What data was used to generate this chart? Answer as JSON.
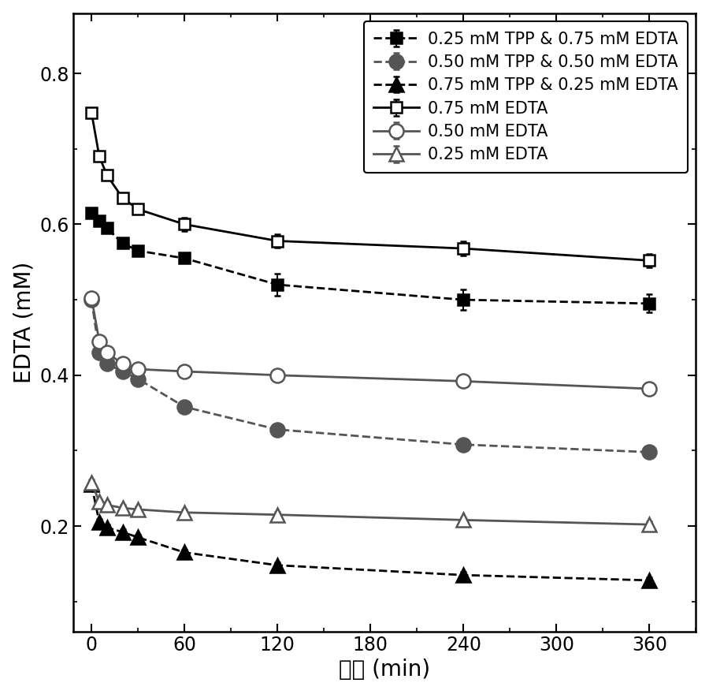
{
  "title": "",
  "xlabel": "时间 (min)",
  "ylabel": "EDTA (mM)",
  "xlim": [
    -12,
    390
  ],
  "ylim": [
    0.06,
    0.88
  ],
  "xticks": [
    0,
    60,
    120,
    180,
    240,
    300,
    360
  ],
  "yticks": [
    0.2,
    0.4,
    0.6,
    0.8
  ],
  "series": [
    {
      "label": "0.25 mM TPP & 0.75 mM EDTA",
      "x": [
        0,
        5,
        10,
        20,
        30,
        60,
        120,
        240,
        360
      ],
      "y": [
        0.615,
        0.605,
        0.595,
        0.575,
        0.565,
        0.555,
        0.52,
        0.5,
        0.495
      ],
      "yerr": [
        0.004,
        0.004,
        0.004,
        0.004,
        0.004,
        0.004,
        0.015,
        0.014,
        0.012
      ],
      "marker": "s",
      "filled": true,
      "color": "#000000",
      "linestyle": "--",
      "markersize": 10
    },
    {
      "label": "0.50 mM TPP & 0.50 mM EDTA",
      "x": [
        0,
        5,
        10,
        20,
        30,
        60,
        120,
        240,
        360
      ],
      "y": [
        0.5,
        0.43,
        0.415,
        0.405,
        0.395,
        0.358,
        0.328,
        0.308,
        0.298
      ],
      "yerr": [
        0.004,
        0.004,
        0.004,
        0.004,
        0.004,
        0.004,
        0.004,
        0.004,
        0.004
      ],
      "marker": "o",
      "filled": true,
      "color": "#555555",
      "linestyle": "--",
      "markersize": 13
    },
    {
      "label": "0.75 mM TPP & 0.25 mM EDTA",
      "x": [
        0,
        5,
        10,
        20,
        30,
        60,
        120,
        240,
        360
      ],
      "y": [
        0.255,
        0.205,
        0.198,
        0.192,
        0.185,
        0.165,
        0.148,
        0.135,
        0.128
      ],
      "yerr": [
        0.004,
        0.004,
        0.004,
        0.004,
        0.004,
        0.004,
        0.004,
        0.004,
        0.004
      ],
      "marker": "^",
      "filled": true,
      "color": "#000000",
      "linestyle": "--",
      "markersize": 13
    },
    {
      "label": "0.75 mM EDTA",
      "x": [
        0,
        5,
        10,
        20,
        30,
        60,
        120,
        240,
        360
      ],
      "y": [
        0.748,
        0.69,
        0.665,
        0.635,
        0.62,
        0.6,
        0.578,
        0.568,
        0.552
      ],
      "yerr": [
        0.004,
        0.004,
        0.004,
        0.004,
        0.004,
        0.009,
        0.009,
        0.009,
        0.009
      ],
      "marker": "s",
      "filled": false,
      "color": "#000000",
      "linestyle": "-",
      "markersize": 10
    },
    {
      "label": "0.50 mM EDTA",
      "x": [
        0,
        5,
        10,
        20,
        30,
        60,
        120,
        240,
        360
      ],
      "y": [
        0.502,
        0.445,
        0.43,
        0.415,
        0.408,
        0.405,
        0.4,
        0.392,
        0.382
      ],
      "yerr": [
        0.004,
        0.004,
        0.004,
        0.004,
        0.004,
        0.004,
        0.004,
        0.004,
        0.004
      ],
      "marker": "o",
      "filled": false,
      "color": "#555555",
      "linestyle": "-",
      "markersize": 13
    },
    {
      "label": "0.25 mM EDTA",
      "x": [
        0,
        5,
        10,
        20,
        30,
        60,
        120,
        240,
        360
      ],
      "y": [
        0.258,
        0.232,
        0.228,
        0.224,
        0.222,
        0.218,
        0.215,
        0.208,
        0.202
      ],
      "yerr": [
        0.004,
        0.004,
        0.004,
        0.004,
        0.004,
        0.004,
        0.004,
        0.004,
        0.004
      ],
      "marker": "^",
      "filled": false,
      "color": "#555555",
      "linestyle": "-",
      "markersize": 13
    }
  ],
  "legend_fontsize": 15,
  "axis_fontsize": 20,
  "tick_fontsize": 17,
  "background_color": "#ffffff"
}
